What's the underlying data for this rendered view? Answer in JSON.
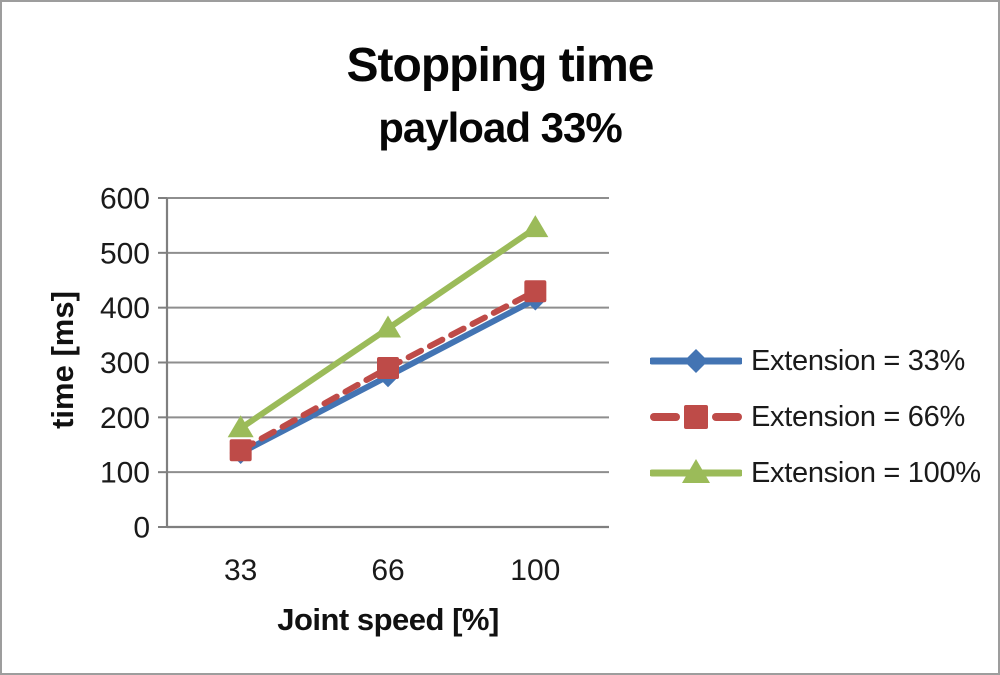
{
  "chart_data": {
    "type": "line",
    "title": "Stopping time",
    "subtitle": "payload 33%",
    "xlabel": "Joint speed [%]",
    "ylabel": "time [ms]",
    "x_axis_type": "category",
    "categories": [
      "33",
      "66",
      "100"
    ],
    "ylim": [
      0,
      600
    ],
    "yticks": [
      0,
      100,
      200,
      300,
      400,
      500,
      600
    ],
    "grid": true,
    "legend_position": "right",
    "series": [
      {
        "name": "Extension = 33%",
        "values": [
          135,
          275,
          415
        ],
        "color": "#4374B3",
        "marker": "diamond",
        "line_style": "solid"
      },
      {
        "name": "Extension = 66%",
        "values": [
          140,
          290,
          430
        ],
        "color": "#BE4B48",
        "marker": "square",
        "line_style": "dashed"
      },
      {
        "name": "Extension = 100%",
        "values": [
          180,
          362,
          545
        ],
        "color": "#9BBB59",
        "marker": "triangle",
        "line_style": "solid"
      }
    ],
    "colors": {
      "grid": "#8e8e8e",
      "axis": "#7f7f7f",
      "tick_text": "#1a1a1a",
      "background": "#ffffff",
      "frame_border": "#9d9d9d"
    }
  }
}
